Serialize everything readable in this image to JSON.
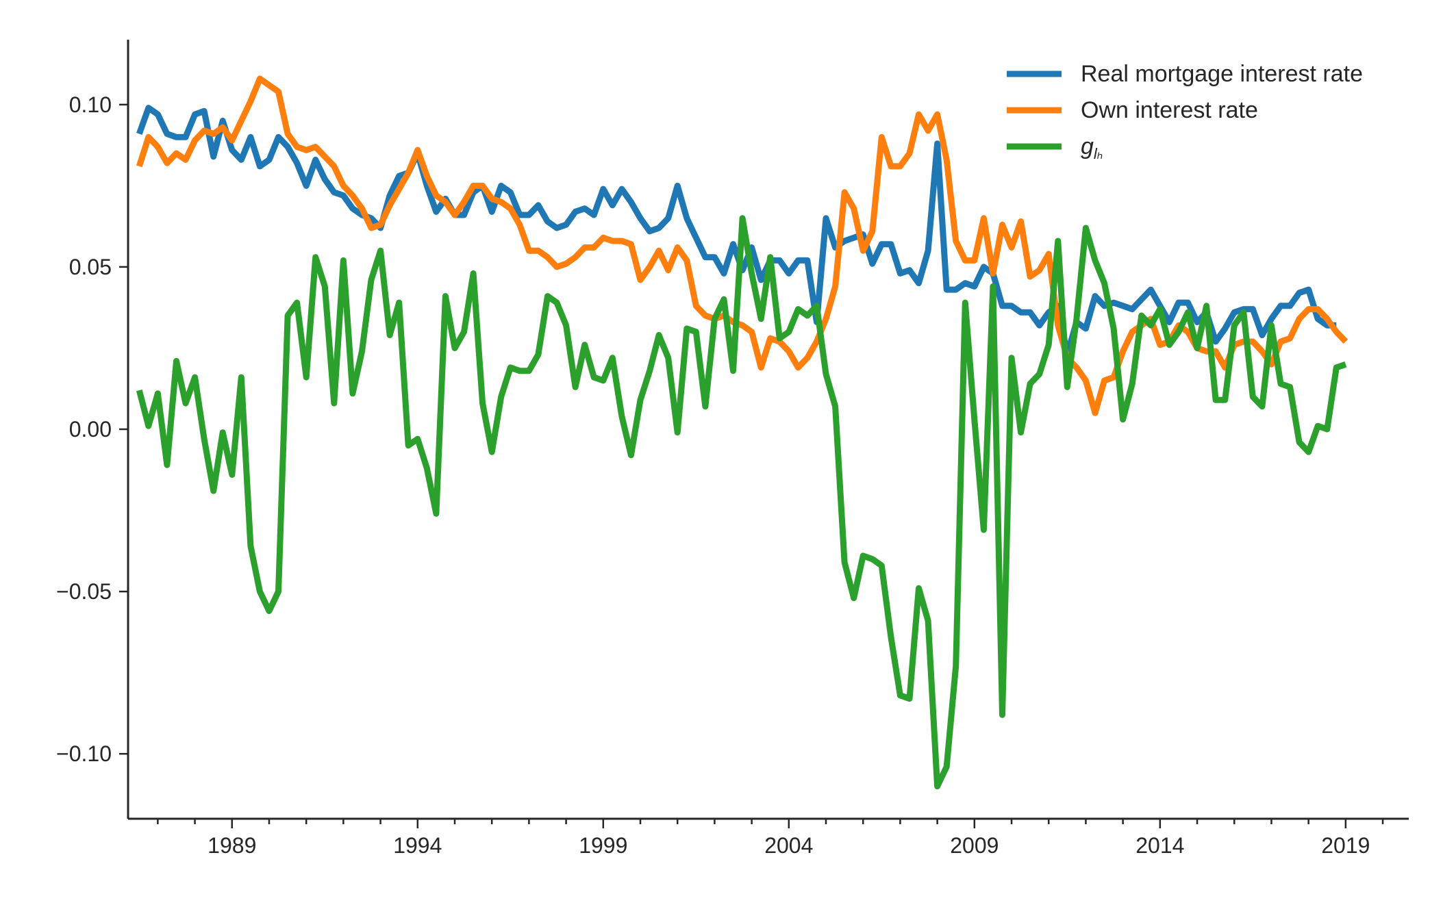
{
  "chart_data": {
    "type": "line",
    "title": "",
    "xlabel": "",
    "ylabel": "",
    "xlim": [
      1986.2,
      2020.7
    ],
    "ylim": [
      -0.12,
      0.12
    ],
    "x_start": 1986.5,
    "x_step": 0.25,
    "yticks": [
      0.1,
      0.05,
      0.0,
      -0.05,
      -0.1
    ],
    "ytick_labels": [
      "0.10",
      "0.05",
      "0.00",
      "−0.05",
      "−0.10"
    ],
    "xticks": [
      1989,
      1994,
      1999,
      2004,
      2009,
      2014,
      2019
    ],
    "xtick_labels": [
      "1989",
      "1994",
      "1999",
      "2004",
      "2009",
      "2014",
      "2019"
    ],
    "grid": false,
    "legend_position": "top-right",
    "series": [
      {
        "name": "Real mortgage interest rate",
        "name_sub": "",
        "color": "#1f77b4",
        "values": [
          0.091,
          0.099,
          0.097,
          0.091,
          0.09,
          0.09,
          0.097,
          0.098,
          0.084,
          0.095,
          0.086,
          0.083,
          0.09,
          0.081,
          0.083,
          0.09,
          0.087,
          0.082,
          0.075,
          0.083,
          0.077,
          0.073,
          0.072,
          0.068,
          0.066,
          0.065,
          0.062,
          0.072,
          0.078,
          0.079,
          0.085,
          0.075,
          0.067,
          0.071,
          0.066,
          0.066,
          0.073,
          0.075,
          0.067,
          0.075,
          0.073,
          0.066,
          0.066,
          0.069,
          0.064,
          0.062,
          0.063,
          0.067,
          0.068,
          0.066,
          0.074,
          0.069,
          0.074,
          0.07,
          0.065,
          0.061,
          0.062,
          0.065,
          0.075,
          0.065,
          0.059,
          0.053,
          0.053,
          0.048,
          0.057,
          0.049,
          0.056,
          0.046,
          0.052,
          0.052,
          0.048,
          0.052,
          0.052,
          0.033,
          0.065,
          0.056,
          0.058,
          0.059,
          0.06,
          0.051,
          0.057,
          0.057,
          0.048,
          0.049,
          0.045,
          0.055,
          0.088,
          0.043,
          0.043,
          0.045,
          0.044,
          0.05,
          0.048,
          0.038,
          0.038,
          0.036,
          0.036,
          0.032,
          0.036,
          0.038,
          0.023,
          0.033,
          0.031,
          0.041,
          0.038,
          0.039,
          0.038,
          0.037,
          0.04,
          0.043,
          0.038,
          0.033,
          0.039,
          0.039,
          0.033,
          0.036,
          0.027,
          0.031,
          0.036,
          0.037,
          0.037,
          0.029,
          0.034,
          0.038,
          0.038,
          0.042,
          0.043,
          0.034,
          0.032,
          0.032
        ]
      },
      {
        "name": "Own interest rate",
        "name_sub": "",
        "color": "#ff7f0e",
        "values": [
          0.081,
          0.09,
          0.087,
          0.082,
          0.085,
          0.083,
          0.089,
          0.092,
          0.091,
          0.093,
          0.089,
          0.095,
          0.101,
          0.108,
          0.106,
          0.104,
          0.091,
          0.087,
          0.086,
          0.087,
          0.084,
          0.081,
          0.075,
          0.072,
          0.068,
          0.062,
          0.063,
          0.069,
          0.074,
          0.079,
          0.086,
          0.078,
          0.072,
          0.07,
          0.066,
          0.07,
          0.075,
          0.075,
          0.071,
          0.07,
          0.068,
          0.063,
          0.055,
          0.055,
          0.053,
          0.05,
          0.051,
          0.053,
          0.056,
          0.056,
          0.059,
          0.058,
          0.058,
          0.057,
          0.046,
          0.05,
          0.055,
          0.049,
          0.056,
          0.052,
          0.038,
          0.035,
          0.034,
          0.035,
          0.033,
          0.032,
          0.03,
          0.019,
          0.028,
          0.027,
          0.024,
          0.019,
          0.022,
          0.027,
          0.034,
          0.044,
          0.073,
          0.068,
          0.055,
          0.061,
          0.09,
          0.081,
          0.081,
          0.085,
          0.097,
          0.092,
          0.097,
          0.083,
          0.058,
          0.052,
          0.052,
          0.065,
          0.048,
          0.063,
          0.056,
          0.064,
          0.047,
          0.049,
          0.054,
          0.032,
          0.022,
          0.019,
          0.015,
          0.005,
          0.015,
          0.016,
          0.024,
          0.03,
          0.032,
          0.034,
          0.026,
          0.027,
          0.032,
          0.03,
          0.025,
          0.024,
          0.024,
          0.019,
          0.026,
          0.027,
          0.027,
          0.024,
          0.02,
          0.027,
          0.028,
          0.034,
          0.037,
          0.037,
          0.034,
          0.03,
          0.027
        ]
      },
      {
        "name": "g",
        "name_sub": "lₕ",
        "color": "#2ca02c",
        "values": [
          0.012,
          0.001,
          0.011,
          -0.011,
          0.021,
          0.008,
          0.016,
          -0.003,
          -0.019,
          -0.001,
          -0.014,
          0.016,
          -0.036,
          -0.05,
          -0.056,
          -0.05,
          0.035,
          0.039,
          0.016,
          0.053,
          0.044,
          0.008,
          0.052,
          0.011,
          0.024,
          0.046,
          0.055,
          0.029,
          0.039,
          -0.005,
          -0.003,
          -0.012,
          -0.026,
          0.041,
          0.025,
          0.03,
          0.048,
          0.008,
          -0.007,
          0.01,
          0.019,
          0.018,
          0.018,
          0.023,
          0.041,
          0.039,
          0.032,
          0.013,
          0.026,
          0.016,
          0.015,
          0.022,
          0.004,
          -0.008,
          0.009,
          0.018,
          0.029,
          0.022,
          -0.001,
          0.031,
          0.03,
          0.007,
          0.034,
          0.04,
          0.018,
          0.065,
          0.048,
          0.034,
          0.053,
          0.028,
          0.03,
          0.037,
          0.035,
          0.038,
          0.017,
          0.007,
          -0.041,
          -0.052,
          -0.039,
          -0.04,
          -0.042,
          -0.064,
          -0.082,
          -0.083,
          -0.049,
          -0.059,
          -0.11,
          -0.104,
          -0.073,
          0.039,
          0.003,
          -0.031,
          0.044,
          -0.088,
          0.022,
          -0.001,
          0.014,
          0.017,
          0.026,
          0.058,
          0.013,
          0.034,
          0.062,
          0.052,
          0.045,
          0.031,
          0.003,
          0.014,
          0.035,
          0.032,
          0.037,
          0.026,
          0.03,
          0.036,
          0.025,
          0.038,
          0.009,
          0.009,
          0.032,
          0.036,
          0.01,
          0.007,
          0.032,
          0.014,
          0.013,
          -0.004,
          -0.007,
          0.001,
          0.0,
          0.019,
          0.02
        ]
      }
    ]
  }
}
